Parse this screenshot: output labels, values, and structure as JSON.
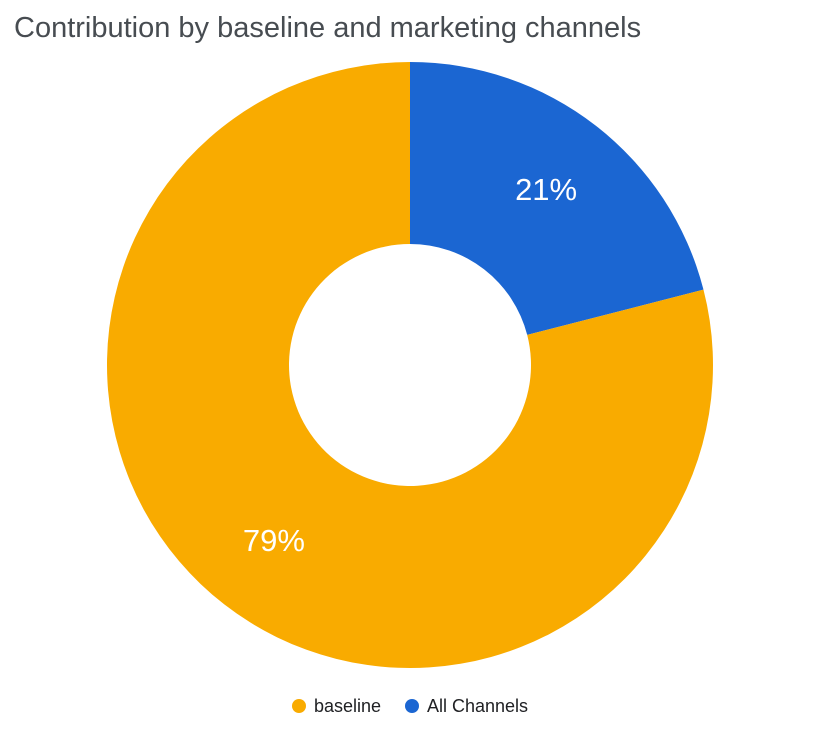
{
  "chart_data": {
    "type": "pie",
    "donut": true,
    "title": "Contribution by baseline and marketing channels",
    "start_angle_deg": -90,
    "direction": "clockwise",
    "inner_radius_ratio": 0.4,
    "value_label_color": "#FFFFFF",
    "legend_position": "bottom",
    "slices": [
      {
        "label": "All Channels",
        "value": 21,
        "display": "21%",
        "color": "#1b66d2"
      },
      {
        "label": "baseline",
        "value": 79,
        "display": "79%",
        "color": "#f9ab00"
      }
    ],
    "legend": [
      {
        "label": "baseline",
        "color": "#f9ab00"
      },
      {
        "label": "All Channels",
        "color": "#1b66d2"
      }
    ]
  }
}
